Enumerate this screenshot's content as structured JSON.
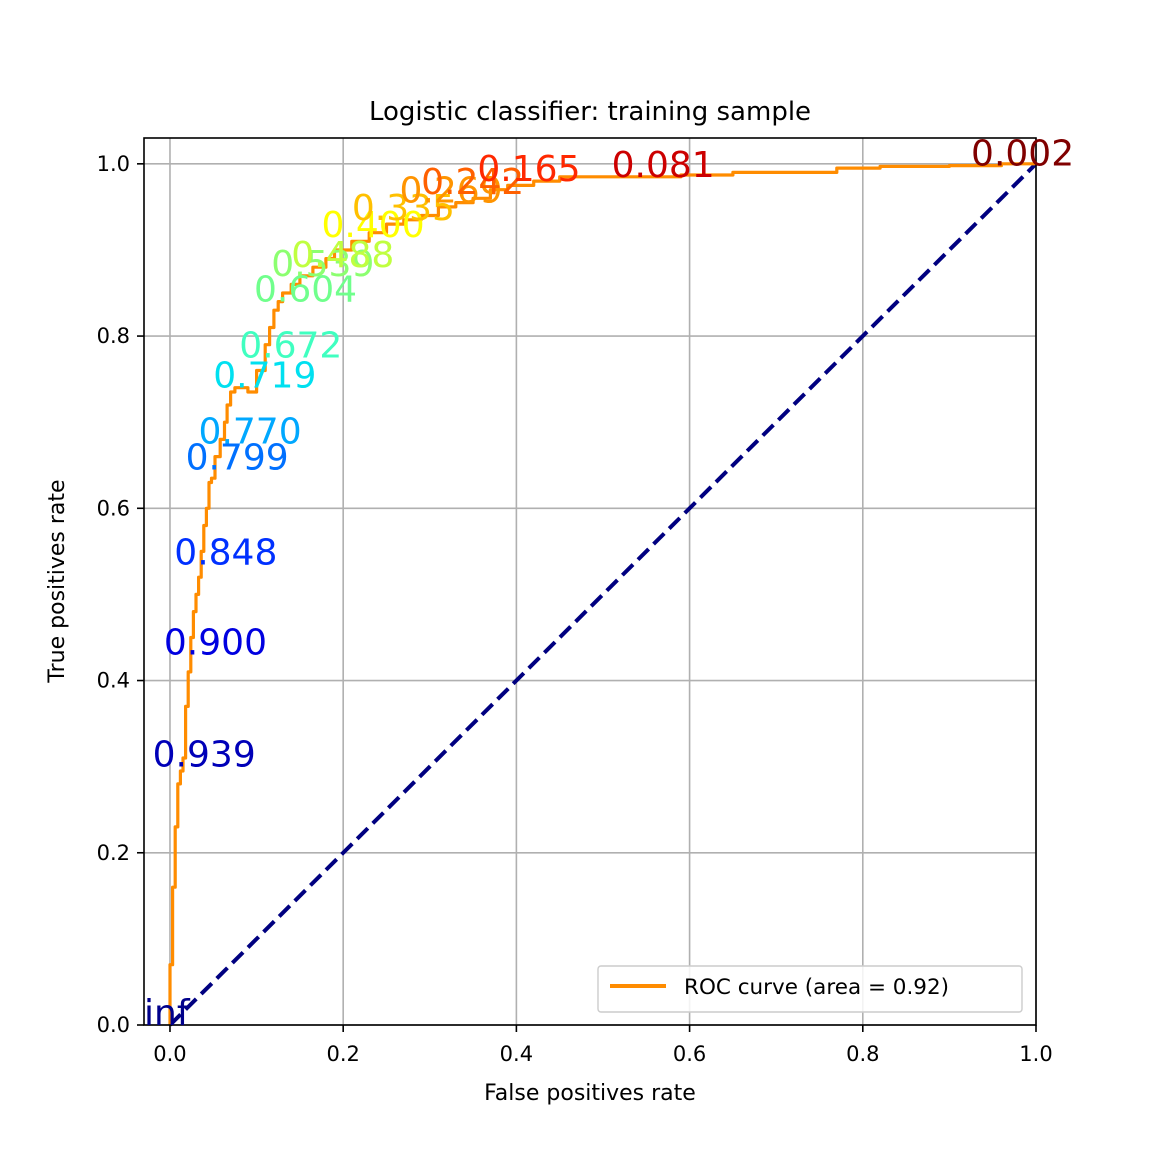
{
  "chart_data": {
    "type": "line",
    "title": "Logistic classifier: training sample",
    "xlabel": "False positives rate",
    "ylabel": "True positives rate",
    "xlim": [
      -0.03,
      1.0
    ],
    "ylim": [
      0.0,
      1.03
    ],
    "grid": true,
    "legend_position": "lower-right",
    "x_ticks": [
      "0.0",
      "0.2",
      "0.4",
      "0.6",
      "0.8",
      "1.0"
    ],
    "y_ticks": [
      "0.0",
      "0.2",
      "0.4",
      "0.6",
      "0.8",
      "1.0"
    ],
    "series": [
      {
        "name": "ROC curve (area = 0.92)",
        "color": "#ff8c00",
        "x": [
          0.0,
          0.0,
          0.003,
          0.003,
          0.006,
          0.006,
          0.009,
          0.009,
          0.012,
          0.012,
          0.015,
          0.015,
          0.018,
          0.018,
          0.021,
          0.021,
          0.024,
          0.024,
          0.027,
          0.027,
          0.03,
          0.03,
          0.033,
          0.033,
          0.036,
          0.036,
          0.039,
          0.039,
          0.042,
          0.042,
          0.045,
          0.045,
          0.048,
          0.048,
          0.052,
          0.052,
          0.058,
          0.058,
          0.063,
          0.063,
          0.066,
          0.066,
          0.07,
          0.07,
          0.075,
          0.075,
          0.08,
          0.08,
          0.09,
          0.09,
          0.1,
          0.1,
          0.11,
          0.11,
          0.115,
          0.115,
          0.12,
          0.12,
          0.125,
          0.125,
          0.13,
          0.13,
          0.14,
          0.14,
          0.15,
          0.15,
          0.165,
          0.165,
          0.18,
          0.18,
          0.19,
          0.19,
          0.21,
          0.21,
          0.23,
          0.23,
          0.25,
          0.25,
          0.27,
          0.27,
          0.29,
          0.29,
          0.31,
          0.31,
          0.33,
          0.33,
          0.35,
          0.35,
          0.37,
          0.37,
          0.39,
          0.39,
          0.42,
          0.42,
          0.45,
          0.45,
          0.52,
          0.52,
          0.59,
          0.59,
          0.65,
          0.65,
          0.72,
          0.72,
          0.77,
          0.77,
          0.82,
          0.82,
          0.9,
          0.9,
          0.96,
          0.96,
          1.0
        ],
        "y": [
          0.0,
          0.07,
          0.07,
          0.16,
          0.16,
          0.23,
          0.23,
          0.28,
          0.28,
          0.295,
          0.295,
          0.31,
          0.31,
          0.37,
          0.37,
          0.41,
          0.41,
          0.45,
          0.45,
          0.48,
          0.48,
          0.5,
          0.5,
          0.52,
          0.52,
          0.55,
          0.55,
          0.58,
          0.58,
          0.6,
          0.6,
          0.63,
          0.63,
          0.635,
          0.635,
          0.66,
          0.66,
          0.68,
          0.68,
          0.7,
          0.7,
          0.72,
          0.72,
          0.735,
          0.735,
          0.74,
          0.74,
          0.74,
          0.74,
          0.735,
          0.735,
          0.76,
          0.76,
          0.79,
          0.79,
          0.81,
          0.81,
          0.83,
          0.83,
          0.84,
          0.84,
          0.85,
          0.85,
          0.86,
          0.86,
          0.87,
          0.87,
          0.88,
          0.88,
          0.89,
          0.89,
          0.9,
          0.9,
          0.91,
          0.91,
          0.92,
          0.92,
          0.93,
          0.93,
          0.935,
          0.935,
          0.94,
          0.94,
          0.95,
          0.95,
          0.955,
          0.955,
          0.96,
          0.96,
          0.97,
          0.97,
          0.975,
          0.975,
          0.98,
          0.98,
          0.985,
          0.985,
          0.985,
          0.985,
          0.987,
          0.987,
          0.99,
          0.99,
          0.99,
          0.99,
          0.995,
          0.995,
          0.997,
          0.997,
          0.998,
          0.998,
          1.0,
          1.0
        ]
      },
      {
        "name": "",
        "color": "#000080",
        "style": "dashed",
        "x": [
          0.0,
          1.0
        ],
        "y": [
          0.0,
          1.0
        ]
      }
    ],
    "annotations": [
      {
        "text": "inf",
        "x": -0.03,
        "y": 0.0,
        "color": "#00008b"
      },
      {
        "text": "0.939",
        "x": -0.02,
        "y": 0.3,
        "color": "#0000b8"
      },
      {
        "text": "0.900",
        "x": -0.007,
        "y": 0.43,
        "color": "#0000e0"
      },
      {
        "text": "0.848",
        "x": 0.005,
        "y": 0.535,
        "color": "#0030ff"
      },
      {
        "text": "0.799",
        "x": 0.018,
        "y": 0.645,
        "color": "#0070ff"
      },
      {
        "text": "0.770",
        "x": 0.033,
        "y": 0.675,
        "color": "#00a8ff"
      },
      {
        "text": "0.719",
        "x": 0.05,
        "y": 0.74,
        "color": "#00e0f0"
      },
      {
        "text": "0.672",
        "x": 0.08,
        "y": 0.775,
        "color": "#40ffc0"
      },
      {
        "text": "0.604",
        "x": 0.097,
        "y": 0.84,
        "color": "#70ff8c"
      },
      {
        "text": "0.539",
        "x": 0.117,
        "y": 0.87,
        "color": "#8cff70"
      },
      {
        "text": "0.488",
        "x": 0.14,
        "y": 0.88,
        "color": "#c0ff40"
      },
      {
        "text": "0.400",
        "x": 0.175,
        "y": 0.915,
        "color": "#ffff00"
      },
      {
        "text": "0.335",
        "x": 0.21,
        "y": 0.935,
        "color": "#ffc000"
      },
      {
        "text": "0.269",
        "x": 0.265,
        "y": 0.955,
        "color": "#ff9400"
      },
      {
        "text": "0.242",
        "x": 0.29,
        "y": 0.965,
        "color": "#ff6000"
      },
      {
        "text": "0.165",
        "x": 0.355,
        "y": 0.98,
        "color": "#ff2800"
      },
      {
        "text": "0.081",
        "x": 0.51,
        "y": 0.985,
        "color": "#cc0000"
      },
      {
        "text": "0.002",
        "x": 0.925,
        "y": 0.998,
        "color": "#800000"
      }
    ]
  }
}
